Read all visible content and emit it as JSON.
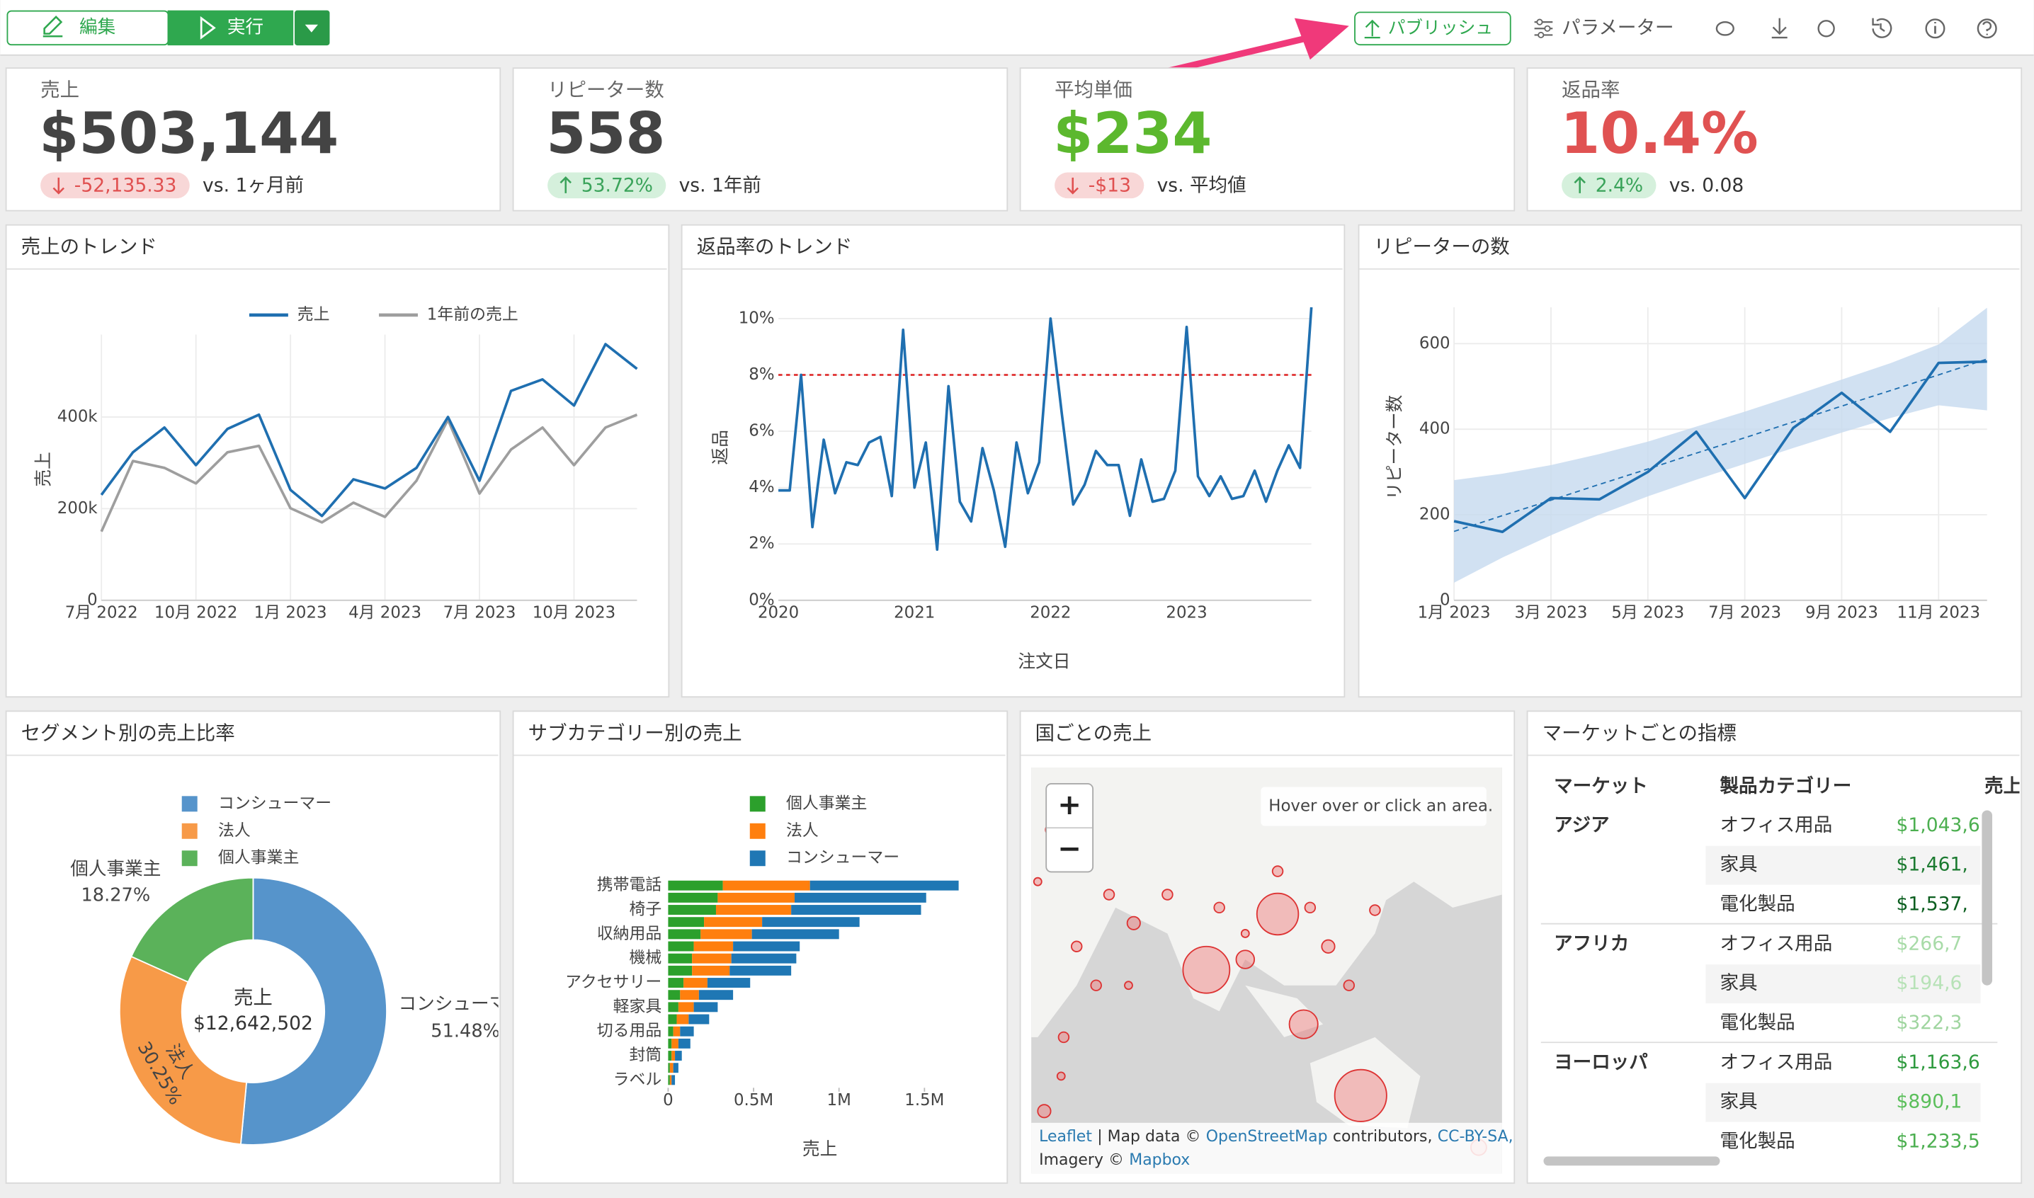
{
  "toolbar": {
    "edit": "編集",
    "run": "実行",
    "publish": "パブリッシュ",
    "parameters": "パラメーター"
  },
  "kpis": [
    {
      "label": "売上",
      "value": "$503,144",
      "color": "#444444",
      "change": "-52,135.33",
      "trend": "down",
      "compare": "vs. 1ヶ月前"
    },
    {
      "label": "リピーター数",
      "value": "558",
      "color": "#444444",
      "change": "53.72%",
      "trend": "up",
      "compare": "vs. 1年前"
    },
    {
      "label": "平均単価",
      "value": "$234",
      "color": "#5cb82e",
      "change": "-$13",
      "trend": "down",
      "compare": "vs. 平均値"
    },
    {
      "label": "返品率",
      "value": "10.4%",
      "color": "#e05252",
      "change": "2.4%",
      "trend": "up",
      "compare": "vs. 0.08"
    }
  ],
  "charts": [
    {
      "type": "line",
      "title": "売上のトレンド",
      "y_label": "売上",
      "grid": "both",
      "x": [
        "2022-07",
        "2022-08",
        "2022-09",
        "2022-10",
        "2022-11",
        "2022-12",
        "2023-01",
        "2023-02",
        "2023-03",
        "2023-04",
        "2023-05",
        "2023-06",
        "2023-07",
        "2023-08",
        "2023-09",
        "2023-10",
        "2023-11",
        "2023-12"
      ],
      "xlim": [
        "2022-07",
        "2023-12"
      ],
      "xticks": [
        {
          "value": "2022-07",
          "label": "7月 2022"
        },
        {
          "value": "2022-10",
          "label": "10月 2022"
        },
        {
          "value": "2023-01",
          "label": "1月 2023"
        },
        {
          "value": "2023-04",
          "label": "4月 2023"
        },
        {
          "value": "2023-07",
          "label": "7月 2023"
        },
        {
          "value": "2023-10",
          "label": "10月 2023"
        }
      ],
      "ylim": [
        0,
        580000
      ],
      "yticks": [
        0,
        {
          "value": 200000,
          "label": "200k"
        },
        {
          "value": 400000,
          "label": "400k"
        }
      ],
      "series": [
        {
          "name": "売上",
          "color": "#1f6fb0",
          "values": [
            230000,
            323000,
            377000,
            295000,
            374000,
            405000,
            241000,
            184000,
            264000,
            244000,
            289000,
            400000,
            261000,
            457000,
            482000,
            425000,
            559000,
            505000
          ]
        },
        {
          "name": "1年前の売上",
          "color": "#9e9e9e",
          "values": [
            150000,
            304000,
            289000,
            255000,
            323000,
            337000,
            201000,
            170000,
            213000,
            182000,
            261000,
            394000,
            233000,
            329000,
            377000,
            295000,
            377000,
            405000
          ]
        }
      ]
    },
    {
      "type": "line",
      "title": "返品率のトレンド",
      "x_label": "注文日",
      "y_label": "返品",
      "grid": "y",
      "x": [
        "2020-01",
        "2020-02",
        "2020-03",
        "2020-04",
        "2020-05",
        "2020-06",
        "2020-07",
        "2020-08",
        "2020-09",
        "2020-10",
        "2020-11",
        "2020-12",
        "2021-01",
        "2021-02",
        "2021-03",
        "2021-04",
        "2021-05",
        "2021-06",
        "2021-07",
        "2021-08",
        "2021-09",
        "2021-10",
        "2021-11",
        "2021-12",
        "2022-01",
        "2022-02",
        "2022-03",
        "2022-04",
        "2022-05",
        "2022-06",
        "2022-07",
        "2022-08",
        "2022-09",
        "2022-10",
        "2022-11",
        "2022-12",
        "2023-01",
        "2023-02",
        "2023-03",
        "2023-04",
        "2023-05",
        "2023-06",
        "2023-07",
        "2023-08",
        "2023-09",
        "2023-10",
        "2023-11",
        "2023-12"
      ],
      "xlim": [
        "2020-01",
        "2023-12"
      ],
      "xticks": [
        {
          "value": "2020-01",
          "label": "2020"
        },
        {
          "value": "2021-01",
          "label": "2021"
        },
        {
          "value": "2022-01",
          "label": "2022"
        },
        {
          "value": "2023-01",
          "label": "2023"
        }
      ],
      "ylim": [
        0,
        10.4
      ],
      "yticks": [
        {
          "value": 0,
          "label": "0%"
        },
        {
          "value": 2,
          "label": "2%"
        },
        {
          "value": 4,
          "label": "4%"
        },
        {
          "value": 6,
          "label": "6%"
        },
        {
          "value": 8,
          "label": "8%"
        },
        {
          "value": 10,
          "label": "10%"
        }
      ],
      "reference_line": {
        "value": 8,
        "color": "#e03030"
      },
      "series": [
        {
          "color": "#1f6fb0",
          "values": [
            3.9,
            3.9,
            8.0,
            2.6,
            5.7,
            3.8,
            4.9,
            4.8,
            5.6,
            5.8,
            3.7,
            9.6,
            4.0,
            5.6,
            1.8,
            7.6,
            3.5,
            2.8,
            5.4,
            3.9,
            1.9,
            5.6,
            3.8,
            4.9,
            10.0,
            6.6,
            3.4,
            4.1,
            5.3,
            4.8,
            4.8,
            3.0,
            5.0,
            3.5,
            3.6,
            4.6,
            9.7,
            4.4,
            3.7,
            4.4,
            3.6,
            3.7,
            4.6,
            3.5,
            4.6,
            5.5,
            4.7,
            10.4
          ]
        }
      ]
    },
    {
      "type": "line",
      "title": "リピーターの数",
      "y_label": "リピーター数",
      "grid": "both",
      "x": [
        "2023-01",
        "2023-02",
        "2023-03",
        "2023-04",
        "2023-05",
        "2023-06",
        "2023-07",
        "2023-08",
        "2023-09",
        "2023-10",
        "2023-11",
        "2023-12"
      ],
      "xlim": [
        "2023-01",
        "2023-12"
      ],
      "xticks": [
        {
          "value": "2023-01",
          "label": "1月 2023"
        },
        {
          "value": "2023-03",
          "label": "3月 2023"
        },
        {
          "value": "2023-05",
          "label": "5月 2023"
        },
        {
          "value": "2023-07",
          "label": "7月 2023"
        },
        {
          "value": "2023-09",
          "label": "9月 2023"
        },
        {
          "value": "2023-11",
          "label": "11月 2023"
        }
      ],
      "ylim": [
        0,
        685
      ],
      "yticks": [
        0,
        200,
        400,
        600
      ],
      "series": [
        {
          "color": "#1f6fb0",
          "values": [
            185,
            160,
            239,
            236,
            300,
            394,
            239,
            403,
            485,
            394,
            555,
            558
          ]
        }
      ],
      "trend": {
        "color": "#1f6fb0",
        "values": [
          161,
          198,
          234,
          271,
          307,
          344,
          380,
          417,
          454,
          490,
          527,
          564
        ]
      },
      "band": {
        "color": "#c6d9ef",
        "lower": [
          41,
          100,
          152,
          200,
          243,
          282,
          319,
          356,
          392,
          426,
          456,
          444
        ],
        "upper": [
          281,
          296,
          316,
          342,
          371,
          406,
          441,
          478,
          516,
          554,
          598,
          684
        ]
      }
    },
    {
      "type": "donut",
      "title": "セグメント別の売上比率",
      "center_label": "売上",
      "center_value": "$12,642,502",
      "categories": [
        "コンシューマー",
        "法人",
        "個人事業主"
      ],
      "values": [
        51.48,
        30.25,
        18.27
      ],
      "value_labels": [
        "51.48%",
        "30.25%",
        "18.27%"
      ],
      "colors": [
        "#5694cb",
        "#f79a48",
        "#5bb25a"
      ]
    },
    {
      "type": "hbar_stacked",
      "title": "サブカテゴリー別の売上",
      "x_label": "売上",
      "categories": [
        "携帯電話",
        null,
        "椅子",
        null,
        "収納用品",
        null,
        "機械",
        null,
        "アクセサリー",
        null,
        "軽家具",
        null,
        "切る用品",
        null,
        "封筒",
        null,
        "ラベル"
      ],
      "xlim": [
        0,
        1700000
      ],
      "xticks": [
        0,
        {
          "value": 500000,
          "label": "0.5M"
        },
        {
          "value": 1000000,
          "label": "1M"
        },
        {
          "value": 1500000,
          "label": "1.5M"
        }
      ],
      "series": [
        {
          "name": "個人事業主",
          "color": "#2ca02c",
          "values": [
            320000,
            290000,
            280000,
            210000,
            190000,
            150000,
            140000,
            140000,
            90000,
            70000,
            60000,
            50000,
            30000,
            20000,
            20000,
            10000,
            10000
          ]
        },
        {
          "name": "法人",
          "color": "#ff7f0e",
          "values": [
            510000,
            450000,
            440000,
            340000,
            300000,
            230000,
            230000,
            220000,
            140000,
            110000,
            90000,
            70000,
            40000,
            40000,
            20000,
            20000,
            10000
          ]
        },
        {
          "name": "コンシューマー",
          "color": "#1f77b4",
          "values": [
            870000,
            770000,
            760000,
            570000,
            510000,
            390000,
            380000,
            360000,
            250000,
            200000,
            140000,
            120000,
            80000,
            70000,
            40000,
            30000,
            20000
          ]
        }
      ]
    },
    {
      "type": "map",
      "title": "国ごとの売上",
      "hint": "Hover over or click an area.",
      "zoom_in": "+",
      "zoom_out": "−",
      "attribution": {
        "leaflet": "Leaflet",
        "sep": "| Map data ©",
        "osm": "OpenStreetMap",
        "contrib": "contributors,",
        "license": "CC-BY-SA,",
        "imagery": "Imagery ©",
        "mapbox": "Mapbox"
      }
    },
    {
      "type": "table",
      "title": "マーケットごとの指標",
      "columns": [
        "マーケット",
        "製品カテゴリー",
        "売上"
      ],
      "groups": [
        {
          "market": "アジア",
          "rows": [
            {
              "category": "オフィス用品",
              "value": "$1,043,6",
              "color": "#4caf50"
            },
            {
              "category": "家具",
              "value": "$1,461,",
              "color": "#1b7a30"
            },
            {
              "category": "電化製品",
              "value": "$1,537,",
              "color": "#0b5e1f"
            }
          ]
        },
        {
          "market": "アフリカ",
          "rows": [
            {
              "category": "オフィス用品",
              "value": "$266,7",
              "color": "#a8dba8"
            },
            {
              "category": "家具",
              "value": "$194,6",
              "color": "#b7e2b7"
            },
            {
              "category": "電化製品",
              "value": "$322,3",
              "color": "#9fd59f"
            }
          ]
        },
        {
          "market": "ヨーロッパ",
          "rows": [
            {
              "category": "オフィス用品",
              "value": "$1,163,6",
              "color": "#2e9a3e"
            },
            {
              "category": "家具",
              "value": "$890,1",
              "color": "#5bbf5b"
            },
            {
              "category": "電化製品",
              "value": "$1,233,5",
              "color": "#4caf50"
            }
          ]
        }
      ]
    }
  ]
}
